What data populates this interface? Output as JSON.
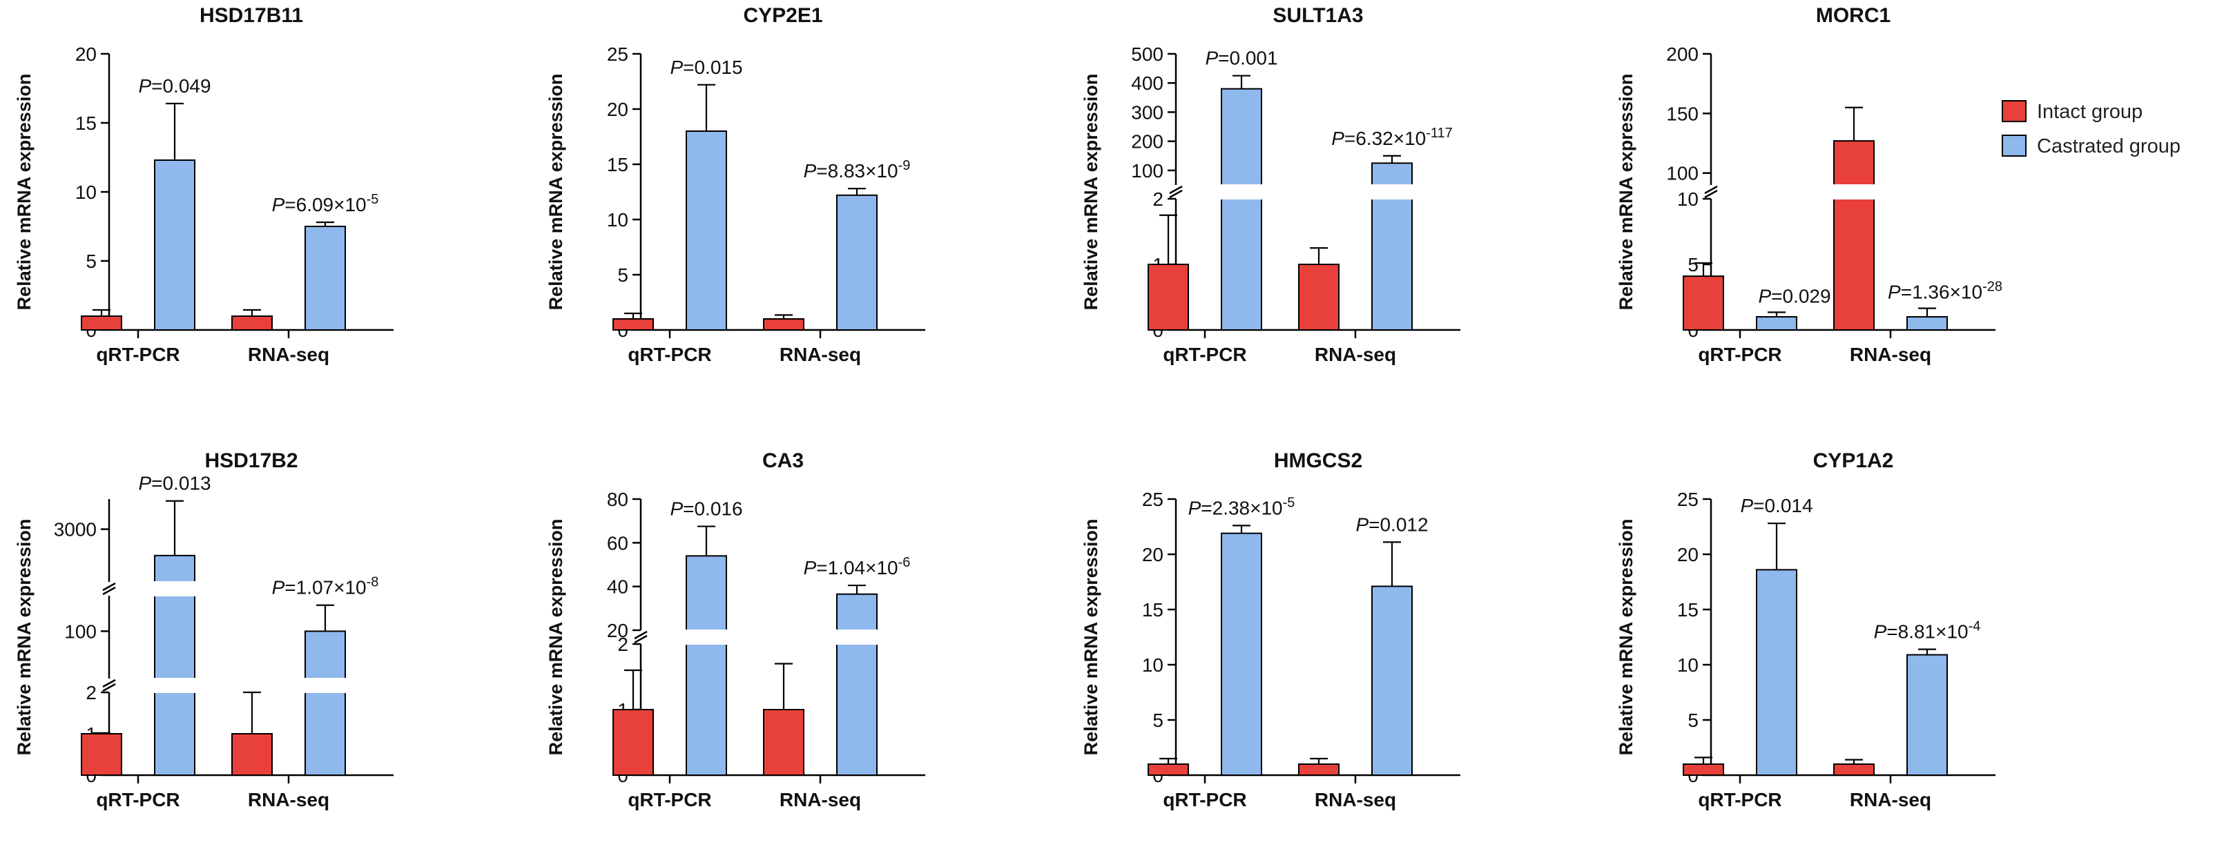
{
  "legend": {
    "position": "top-right",
    "items": [
      {
        "label": "Intact group",
        "color": "#E8403A"
      },
      {
        "label": "Castrated group",
        "color": "#8FB8EC"
      }
    ]
  },
  "colors": {
    "intact": "#E8403A",
    "castrated": "#8FB8EC",
    "axis": "#000000"
  },
  "chart_data": [
    {
      "type": "bar",
      "title": "HSD17B11",
      "ylabel": "Relative mRNA expression",
      "categories": [
        "qRT-PCR",
        "RNA-seq"
      ],
      "series": [
        {
          "name": "Intact group",
          "values": [
            1,
            1
          ],
          "errors": [
            0.45,
            0.45
          ]
        },
        {
          "name": "Castrated group",
          "values": [
            12.3,
            7.5
          ],
          "errors": [
            4.1,
            0.3
          ]
        }
      ],
      "ylim": [
        0,
        20
      ],
      "segments": [
        {
          "range": [
            0,
            20
          ],
          "ticks": [
            0,
            5,
            10,
            15,
            20
          ]
        }
      ],
      "pvalues": [
        {
          "prefix": "=",
          "mant": "0.049",
          "exp": ""
        },
        {
          "prefix": "=",
          "mant": "6.09×10",
          "exp": "-5"
        }
      ]
    },
    {
      "type": "bar",
      "title": "CYP2E1",
      "ylabel": "Relative mRNA expression",
      "categories": [
        "qRT-PCR",
        "RNA-seq"
      ],
      "series": [
        {
          "name": "Intact group",
          "values": [
            1,
            1
          ],
          "errors": [
            0.5,
            0.35
          ]
        },
        {
          "name": "Castrated group",
          "values": [
            18,
            12.2
          ],
          "errors": [
            4.2,
            0.6
          ]
        }
      ],
      "ylim": [
        0,
        25
      ],
      "segments": [
        {
          "range": [
            0,
            25
          ],
          "ticks": [
            0,
            5,
            10,
            15,
            20,
            25
          ]
        }
      ],
      "pvalues": [
        {
          "prefix": "=",
          "mant": "0.015",
          "exp": ""
        },
        {
          "prefix": "=",
          "mant": "8.83×10",
          "exp": "-9"
        }
      ]
    },
    {
      "type": "bar",
      "title": "SULT1A3",
      "ylabel": "Relative mRNA expression",
      "categories": [
        "qRT-PCR",
        "RNA-seq"
      ],
      "series": [
        {
          "name": "Intact group",
          "values": [
            1,
            1
          ],
          "errors": [
            0.75,
            0.25
          ]
        },
        {
          "name": "Castrated group",
          "values": [
            380,
            125
          ],
          "errors": [
            45,
            25
          ]
        }
      ],
      "ylim": [
        0,
        500
      ],
      "segments": [
        {
          "range": [
            0,
            2
          ],
          "ticks": [
            0,
            1,
            2
          ]
        },
        {
          "range": [
            50,
            500
          ],
          "ticks": [
            100,
            200,
            300,
            400,
            500
          ]
        }
      ],
      "pvalues": [
        {
          "prefix": "=",
          "mant": "0.001",
          "exp": ""
        },
        {
          "prefix": "=",
          "mant": "6.32×10",
          "exp": "-117"
        }
      ]
    },
    {
      "type": "bar",
      "title": "MORC1",
      "ylabel": "Relative mRNA expression",
      "categories": [
        "qRT-PCR",
        "RNA-seq"
      ],
      "series": [
        {
          "name": "Intact group",
          "values": [
            4.1,
            127
          ],
          "errors": [
            1,
            28
          ]
        },
        {
          "name": "Castrated group",
          "values": [
            1,
            1
          ],
          "errors": [
            0.35,
            0.65
          ]
        }
      ],
      "ylim": [
        0,
        200
      ],
      "segments": [
        {
          "range": [
            0,
            10
          ],
          "ticks": [
            0,
            5,
            10
          ]
        },
        {
          "range": [
            90,
            200
          ],
          "ticks": [
            100,
            150,
            200
          ]
        }
      ],
      "pvalues": [
        {
          "prefix": "=",
          "mant": "0.029",
          "exp": ""
        },
        {
          "prefix": "=",
          "mant": "1.36×10",
          "exp": "-28"
        }
      ]
    },
    {
      "type": "bar",
      "title": "HSD17B2",
      "ylabel": "Relative mRNA expression",
      "categories": [
        "qRT-PCR",
        "RNA-seq"
      ],
      "series": [
        {
          "name": "Intact group",
          "values": [
            1,
            1
          ],
          "errors": [
            0.02,
            1
          ]
        },
        {
          "name": "Castrated group",
          "values": [
            2300,
            100
          ],
          "errors": [
            1450,
            22
          ]
        }
      ],
      "ylim": [
        0,
        3800
      ],
      "segments": [
        {
          "range": [
            0,
            2
          ],
          "ticks": [
            0,
            1,
            2
          ]
        },
        {
          "range": [
            60,
            130
          ],
          "ticks": [
            100
          ]
        },
        {
          "range": [
            1600,
            3800
          ],
          "ticks": [
            3000
          ]
        }
      ],
      "pvalues": [
        {
          "prefix": "=",
          "mant": "0.013",
          "exp": ""
        },
        {
          "prefix": "=",
          "mant": "1.07×10",
          "exp": "-8"
        }
      ]
    },
    {
      "type": "bar",
      "title": "CA3",
      "ylabel": "Relative mRNA expression",
      "categories": [
        "qRT-PCR",
        "RNA-seq"
      ],
      "series": [
        {
          "name": "Intact group",
          "values": [
            1,
            1
          ],
          "errors": [
            0.6,
            0.7
          ]
        },
        {
          "name": "Castrated group",
          "values": [
            54,
            36.5
          ],
          "errors": [
            13.5,
            4
          ]
        }
      ],
      "ylim": [
        0,
        80
      ],
      "segments": [
        {
          "range": [
            0,
            2
          ],
          "ticks": [
            0,
            1,
            2
          ]
        },
        {
          "range": [
            20,
            80
          ],
          "ticks": [
            20,
            40,
            60,
            80
          ]
        }
      ],
      "pvalues": [
        {
          "prefix": "=",
          "mant": "0.016",
          "exp": ""
        },
        {
          "prefix": "=",
          "mant": "1.04×10",
          "exp": "-6"
        }
      ]
    },
    {
      "type": "bar",
      "title": "HMGCS2",
      "ylabel": "Relative mRNA expression",
      "categories": [
        "qRT-PCR",
        "RNA-seq"
      ],
      "series": [
        {
          "name": "Intact group",
          "values": [
            1,
            1
          ],
          "errors": [
            0.5,
            0.5
          ]
        },
        {
          "name": "Castrated group",
          "values": [
            21.9,
            17.1
          ],
          "errors": [
            0.7,
            4
          ]
        }
      ],
      "ylim": [
        0,
        25
      ],
      "segments": [
        {
          "range": [
            0,
            25
          ],
          "ticks": [
            0,
            5,
            10,
            15,
            20,
            25
          ]
        }
      ],
      "pvalues": [
        {
          "prefix": "=",
          "mant": "2.38×10",
          "exp": "-5"
        },
        {
          "prefix": "=",
          "mant": "0.012",
          "exp": ""
        }
      ]
    },
    {
      "type": "bar",
      "title": "CYP1A2",
      "ylabel": "Relative mRNA expression",
      "categories": [
        "qRT-PCR",
        "RNA-seq"
      ],
      "series": [
        {
          "name": "Intact group",
          "values": [
            1,
            1
          ],
          "errors": [
            0.6,
            0.4
          ]
        },
        {
          "name": "Castrated group",
          "values": [
            18.6,
            10.9
          ],
          "errors": [
            4.2,
            0.5
          ]
        }
      ],
      "ylim": [
        0,
        25
      ],
      "segments": [
        {
          "range": [
            0,
            25
          ],
          "ticks": [
            0,
            5,
            10,
            15,
            20,
            25
          ]
        }
      ],
      "pvalues": [
        {
          "prefix": "=",
          "mant": "0.014",
          "exp": ""
        },
        {
          "prefix": "=",
          "mant": "8.81×10",
          "exp": "-4"
        }
      ]
    }
  ]
}
